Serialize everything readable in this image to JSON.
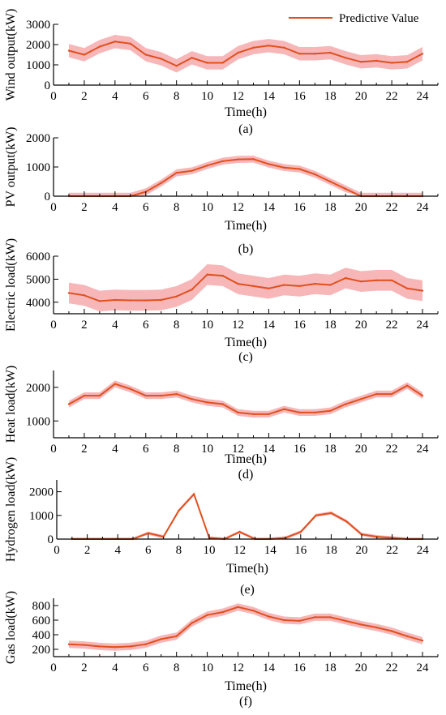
{
  "legend": {
    "label": "Predictive Value"
  },
  "colors": {
    "line": "#e0501e",
    "band": "#f7b7b9",
    "axis": "#000000"
  },
  "chart_data": [
    {
      "type": "area",
      "panel": "(a)",
      "xlabel": "Time(h)",
      "ylabel": "Wind output(kW)",
      "xlim": [
        0,
        25
      ],
      "ylim": [
        0,
        3000
      ],
      "x_ticks": [
        0,
        2,
        4,
        6,
        8,
        10,
        12,
        14,
        16,
        18,
        20,
        22,
        24
      ],
      "y_ticks": [
        0,
        1000,
        2000,
        3000
      ],
      "x": [
        1,
        2,
        3,
        4,
        5,
        6,
        7,
        8,
        9,
        10,
        11,
        12,
        13,
        14,
        15,
        16,
        17,
        18,
        19,
        20,
        21,
        22,
        23,
        24
      ],
      "series": [
        {
          "name": "Predictive Value",
          "values": [
            1700,
            1500,
            1900,
            2150,
            2050,
            1500,
            1300,
            950,
            1350,
            1100,
            1100,
            1600,
            1850,
            1950,
            1850,
            1550,
            1550,
            1600,
            1350,
            1150,
            1200,
            1100,
            1150,
            1550
          ],
          "band": 330
        }
      ]
    },
    {
      "type": "area",
      "panel": "(b)",
      "xlabel": "Time(h)",
      "ylabel": "PV output(kW)",
      "xlim": [
        0,
        25
      ],
      "ylim": [
        0,
        2000
      ],
      "x_ticks": [
        0,
        2,
        4,
        6,
        8,
        10,
        12,
        14,
        16,
        18,
        20,
        22,
        24
      ],
      "y_ticks": [
        0,
        1000,
        2000
      ],
      "x": [
        1,
        2,
        3,
        4,
        5,
        6,
        7,
        8,
        9,
        10,
        11,
        12,
        13,
        14,
        15,
        16,
        17,
        18,
        19,
        20,
        21,
        22,
        23,
        24
      ],
      "series": [
        {
          "name": "Predictive Value",
          "values": [
            0,
            0,
            0,
            0,
            0,
            150,
            450,
            800,
            870,
            1050,
            1200,
            1260,
            1270,
            1100,
            980,
            930,
            750,
            500,
            250,
            0,
            0,
            0,
            0,
            0
          ],
          "band": 120
        }
      ]
    },
    {
      "type": "area",
      "panel": "(c)",
      "xlabel": "Time(h)",
      "ylabel": "Electric load(kW)",
      "xlim": [
        0,
        25
      ],
      "ylim": [
        3500,
        6000
      ],
      "x_ticks": [
        0,
        2,
        4,
        6,
        8,
        10,
        12,
        14,
        16,
        18,
        20,
        22,
        24
      ],
      "y_ticks": [
        4000,
        5000,
        6000
      ],
      "x": [
        1,
        2,
        3,
        4,
        5,
        6,
        7,
        8,
        9,
        10,
        11,
        12,
        13,
        14,
        15,
        16,
        17,
        18,
        19,
        20,
        21,
        22,
        23,
        24
      ],
      "series": [
        {
          "name": "Predictive Value",
          "values": [
            4400,
            4300,
            4050,
            4100,
            4080,
            4080,
            4100,
            4250,
            4550,
            5200,
            5150,
            4800,
            4700,
            4600,
            4750,
            4700,
            4800,
            4750,
            5050,
            4900,
            4950,
            4950,
            4600,
            4500
          ],
          "band": 450
        }
      ]
    },
    {
      "type": "area",
      "panel": "(d)",
      "xlabel": "Time(h)",
      "ylabel": "Heat load(kW)",
      "xlim": [
        0,
        25
      ],
      "ylim": [
        500,
        2500
      ],
      "x_ticks": [
        0,
        2,
        4,
        6,
        8,
        10,
        12,
        14,
        16,
        18,
        20,
        22,
        24
      ],
      "y_ticks": [
        1000,
        2000
      ],
      "x": [
        1,
        2,
        3,
        4,
        5,
        6,
        7,
        8,
        9,
        10,
        11,
        12,
        13,
        14,
        15,
        16,
        17,
        18,
        19,
        20,
        21,
        22,
        23,
        24
      ],
      "series": [
        {
          "name": "Predictive Value",
          "values": [
            1500,
            1750,
            1750,
            2100,
            1950,
            1750,
            1750,
            1800,
            1650,
            1550,
            1500,
            1250,
            1200,
            1200,
            1350,
            1250,
            1250,
            1300,
            1500,
            1650,
            1800,
            1800,
            2050,
            1750
          ],
          "band": 100
        }
      ]
    },
    {
      "type": "area",
      "panel": "(e)",
      "xlabel": "Time(h)",
      "ylabel": "Hydrogen load(kW)",
      "xlim": [
        0,
        25
      ],
      "ylim": [
        0,
        2500
      ],
      "x_ticks": [
        0,
        2,
        4,
        6,
        8,
        10,
        12,
        14,
        16,
        18,
        20,
        22,
        24
      ],
      "y_ticks": [
        0,
        1000,
        2000
      ],
      "x": [
        1,
        2,
        3,
        4,
        5,
        6,
        7,
        8,
        9,
        10,
        11,
        12,
        13,
        14,
        15,
        16,
        17,
        18,
        19,
        20,
        21,
        22,
        23,
        24
      ],
      "series": [
        {
          "name": "Predictive Value",
          "values": [
            0,
            0,
            0,
            0,
            0,
            250,
            100,
            1200,
            1900,
            50,
            0,
            300,
            0,
            0,
            50,
            300,
            1000,
            1100,
            750,
            200,
            100,
            50,
            0,
            0
          ],
          "band": 70
        }
      ]
    },
    {
      "type": "area",
      "panel": "(f)",
      "xlabel": "Time(h)",
      "ylabel": "Gas load(kW)",
      "xlim": [
        0,
        25
      ],
      "ylim": [
        100,
        900
      ],
      "x_ticks": [
        0,
        2,
        4,
        6,
        8,
        10,
        12,
        14,
        16,
        18,
        20,
        22,
        24
      ],
      "y_ticks": [
        200,
        400,
        600,
        800
      ],
      "x": [
        1,
        2,
        3,
        4,
        5,
        6,
        7,
        8,
        9,
        10,
        11,
        12,
        13,
        14,
        15,
        16,
        17,
        18,
        19,
        20,
        21,
        22,
        23,
        24
      ],
      "series": [
        {
          "name": "Predictive Value",
          "values": [
            270,
            260,
            240,
            230,
            240,
            270,
            340,
            380,
            560,
            670,
            710,
            780,
            730,
            650,
            600,
            590,
            640,
            640,
            590,
            540,
            500,
            450,
            380,
            320
          ],
          "band": 50
        }
      ]
    }
  ]
}
